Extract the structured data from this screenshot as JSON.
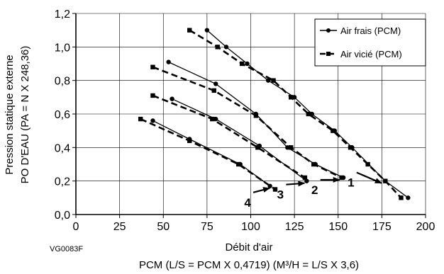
{
  "chart_data": {
    "type": "line",
    "title": "",
    "xlabel": "Débit d'air",
    "xlabel_sub": "PCM (L/S = PCM X 0,4719) (M³/H = L/S X 3,6)",
    "ylabel": "Pression statique externe",
    "ylabel_sub": "PO D'EAU (PA = N X 248,36)",
    "figure_code": "VG0083F",
    "xlim": [
      0,
      200
    ],
    "ylim": [
      0,
      1.2
    ],
    "x_ticks": [
      0,
      25,
      50,
      75,
      100,
      125,
      150,
      175,
      200
    ],
    "x_tick_labels": [
      "0",
      "25",
      "50",
      "75",
      "100",
      "125",
      "150",
      "175",
      "200"
    ],
    "y_ticks": [
      0,
      0.2,
      0.4,
      0.6,
      0.8,
      1.0,
      1.2
    ],
    "y_tick_labels": [
      "0,0",
      "0,2",
      "0,4",
      "0,6",
      "0,8",
      "1,0",
      "1,2"
    ],
    "grid": true,
    "legend_position": "top-right",
    "legend": [
      {
        "label": "Air frais (PCM)",
        "style": "solid",
        "marker": "circle"
      },
      {
        "label": "Air vicié (PCM)",
        "style": "dashed",
        "marker": "square"
      }
    ],
    "curve_labels": [
      {
        "text": "1",
        "x": 176,
        "y": 0.2
      },
      {
        "text": "2",
        "x": 152,
        "y": 0.22
      },
      {
        "text": "3",
        "x": 132,
        "y": 0.2
      },
      {
        "text": "4",
        "x": 112,
        "y": 0.17
      }
    ],
    "series": [
      {
        "curve": "1",
        "type": "Air frais (PCM)",
        "x": [
          75,
          86,
          98,
          110,
          125,
          135,
          148,
          158,
          177,
          190
        ],
        "y": [
          1.1,
          1.0,
          0.9,
          0.8,
          0.7,
          0.6,
          0.5,
          0.4,
          0.2,
          0.1
        ]
      },
      {
        "curve": "1",
        "type": "Air vicié (PCM)",
        "x": [
          65,
          81,
          95,
          113,
          123,
          133,
          147,
          157,
          167,
          177,
          186
        ],
        "y": [
          1.1,
          1.0,
          0.9,
          0.8,
          0.7,
          0.6,
          0.5,
          0.4,
          0.3,
          0.2,
          0.1
        ]
      },
      {
        "curve": "2",
        "type": "Air frais (PCM)",
        "x": [
          53,
          80,
          103,
          121,
          137,
          153
        ],
        "y": [
          0.91,
          0.78,
          0.6,
          0.4,
          0.3,
          0.22
        ]
      },
      {
        "curve": "2",
        "type": "Air vicié (PCM)",
        "x": [
          44,
          79,
          103,
          123,
          136,
          152
        ],
        "y": [
          0.88,
          0.74,
          0.59,
          0.4,
          0.3,
          0.22
        ]
      },
      {
        "curve": "3",
        "type": "Air frais (PCM)",
        "x": [
          55,
          80,
          105,
          132
        ],
        "y": [
          0.69,
          0.57,
          0.41,
          0.2
        ]
      },
      {
        "curve": "3",
        "type": "Air vicié (PCM)",
        "x": [
          44,
          78,
          104,
          131
        ],
        "y": [
          0.71,
          0.57,
          0.4,
          0.22
        ]
      },
      {
        "curve": "4",
        "type": "Air frais (PCM)",
        "x": [
          44,
          65,
          94,
          111
        ],
        "y": [
          0.56,
          0.45,
          0.3,
          0.17
        ]
      },
      {
        "curve": "4",
        "type": "Air vicié (PCM)",
        "x": [
          37,
          65,
          93,
          114
        ],
        "y": [
          0.57,
          0.44,
          0.3,
          0.15
        ]
      }
    ]
  }
}
